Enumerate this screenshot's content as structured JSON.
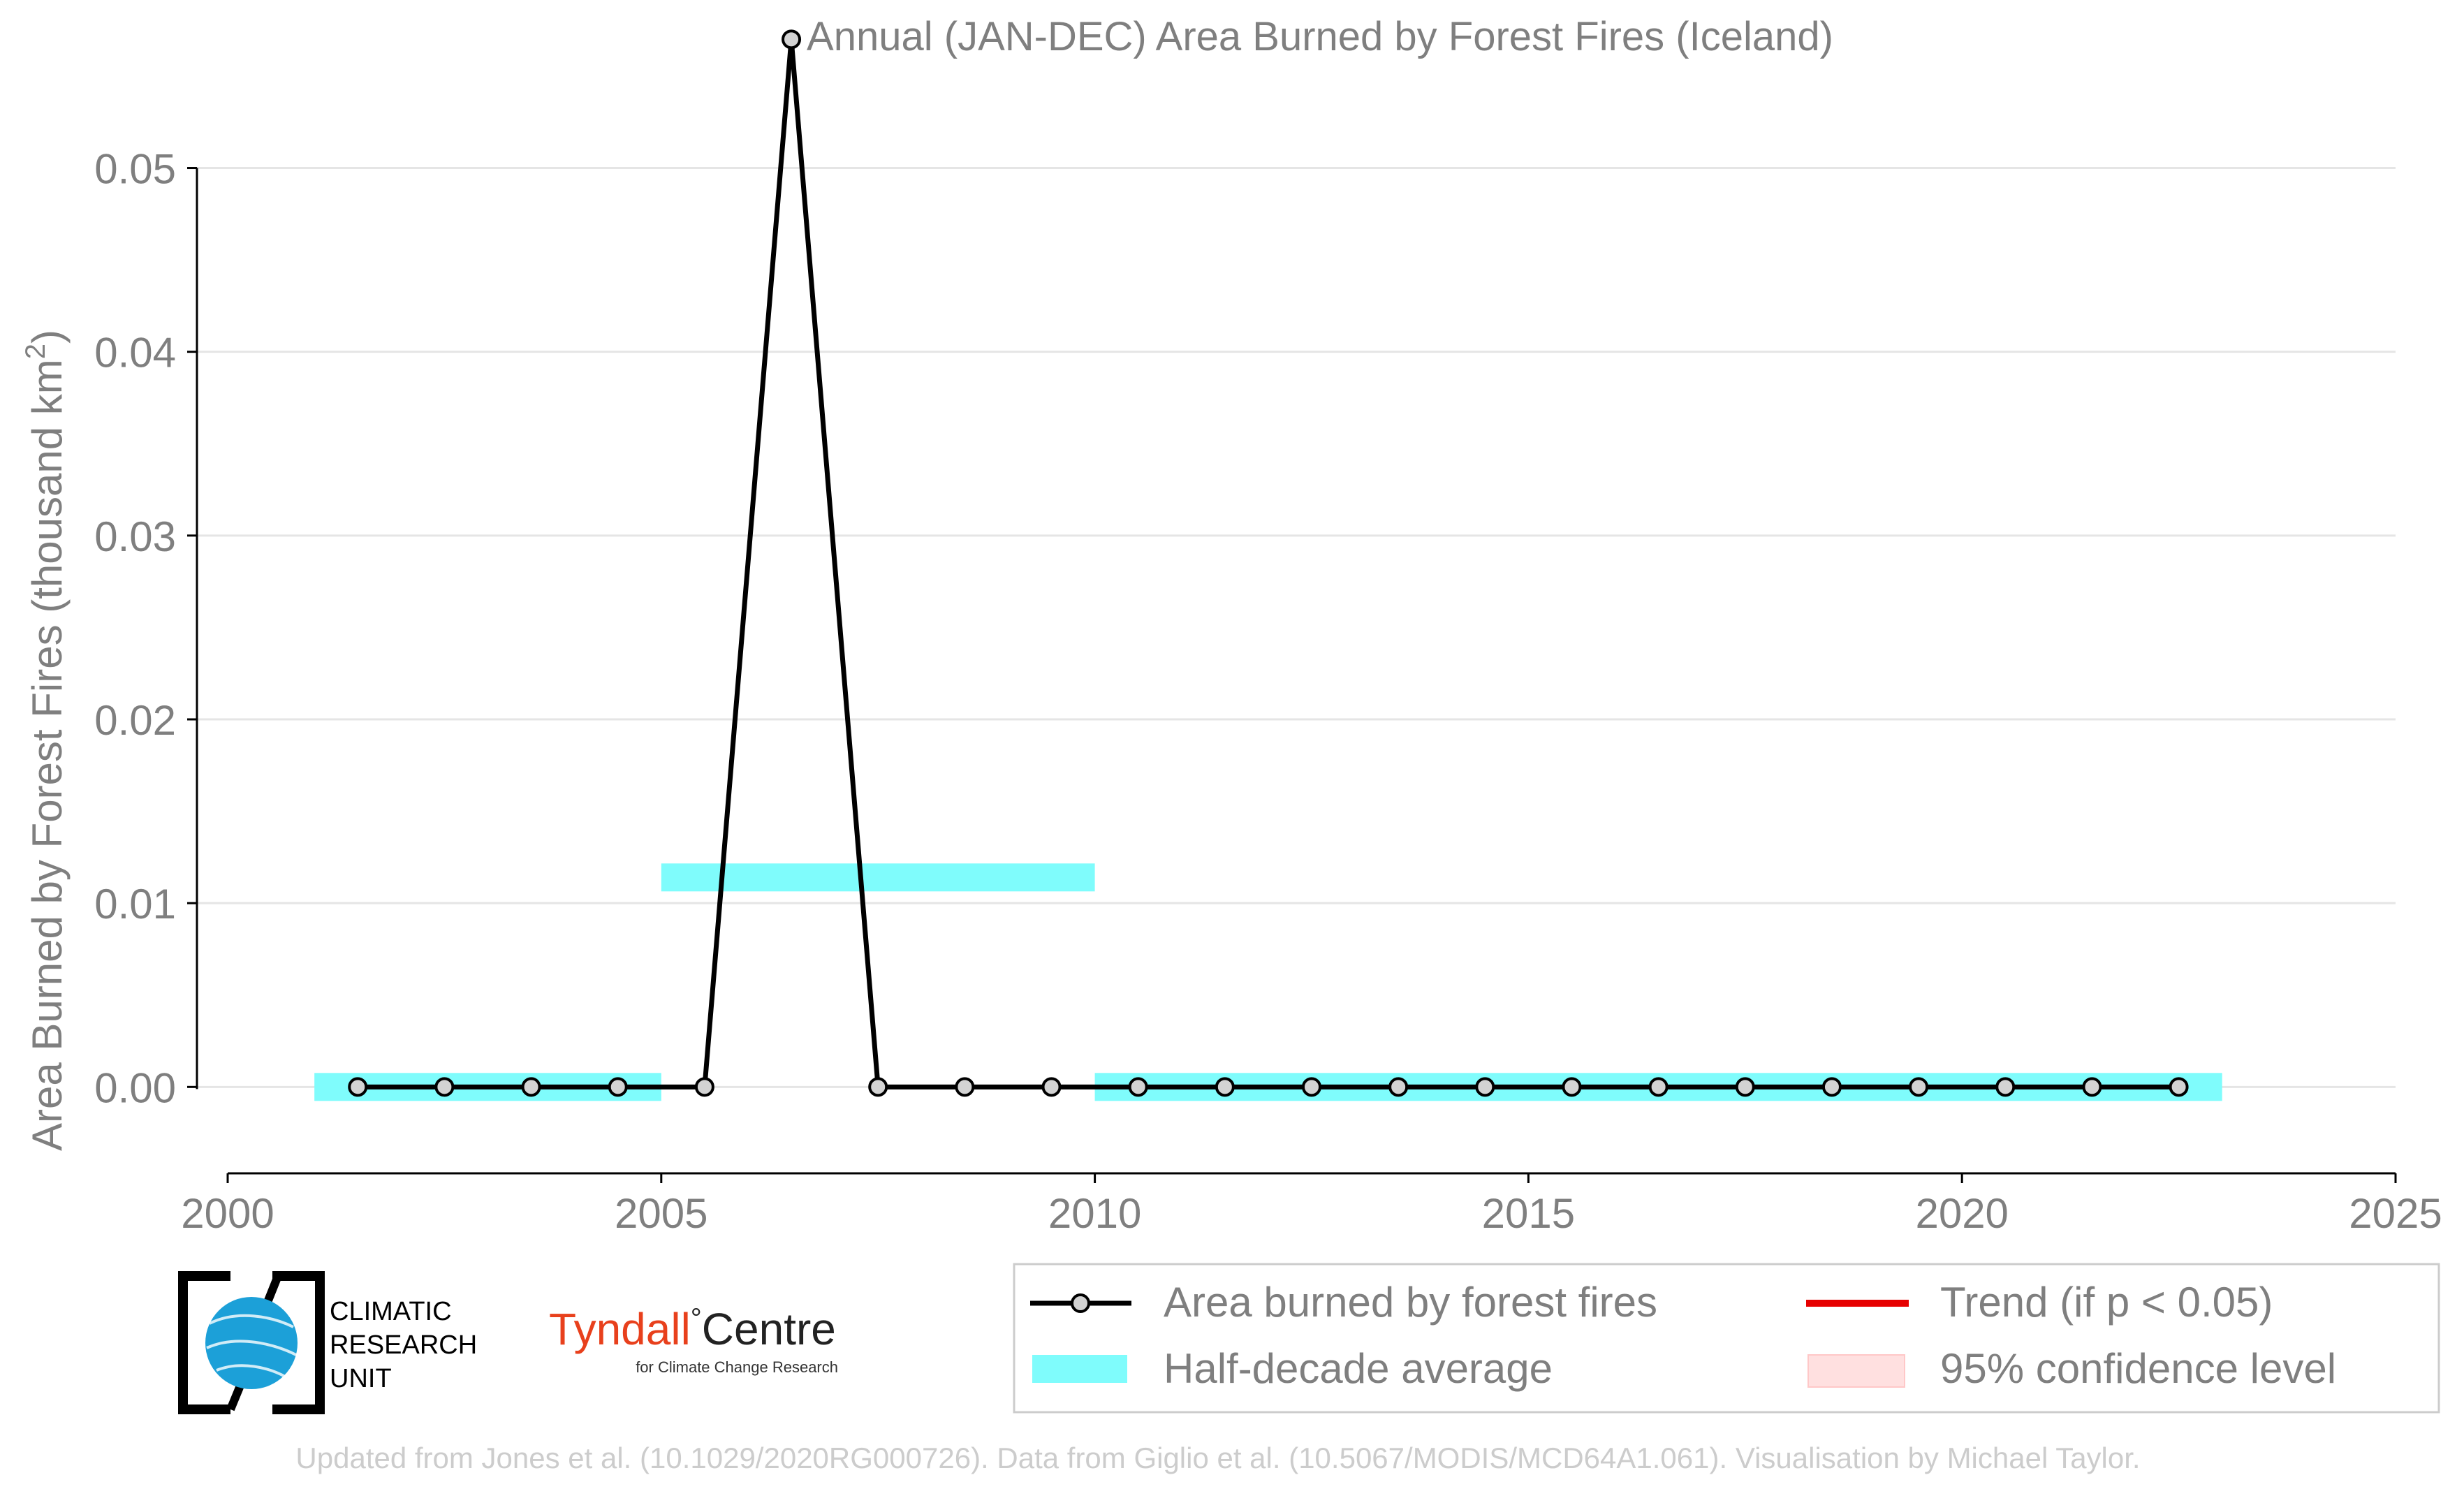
{
  "chart_data": {
    "type": "line",
    "title": "Annual (JAN-DEC) Area Burned by Forest Fires (Iceland)",
    "ylabel_main": "Area Burned by Forest Fires (thousand km",
    "ylabel_sup": "2",
    "ylabel_close": ")",
    "xlabel": "",
    "xlim": [
      2000,
      2025
    ],
    "ylim": [
      -0.0047,
      0.058
    ],
    "x_ticks": [
      2000,
      2005,
      2010,
      2015,
      2020,
      2025
    ],
    "y_ticks": [
      0.0,
      0.01,
      0.02,
      0.03,
      0.04,
      0.05
    ],
    "y_tick_labels": [
      "0.00",
      "0.01",
      "0.02",
      "0.03",
      "0.04",
      "0.05"
    ],
    "grid": true,
    "series": [
      {
        "name": "Area burned by forest fires",
        "color": "#000000",
        "marker_fill": "#d3d3d3",
        "x": [
          2001.5,
          2002.5,
          2003.5,
          2004.5,
          2005.5,
          2006.5,
          2007.5,
          2008.5,
          2009.5,
          2010.5,
          2011.5,
          2012.5,
          2013.5,
          2014.5,
          2015.5,
          2016.5,
          2017.5,
          2018.5,
          2019.5,
          2020.5,
          2021.5,
          2022.5
        ],
        "values": [
          0,
          0,
          0,
          0,
          0,
          0.057,
          0,
          0,
          0,
          0,
          0,
          0,
          0,
          0,
          0,
          0,
          0,
          0,
          0,
          0,
          0,
          0
        ]
      }
    ],
    "half_decade_average": {
      "name": "Half-decade average",
      "color": "#7ffcfc",
      "segments": [
        {
          "x_start": 2001,
          "x_end": 2005,
          "value": 0.0
        },
        {
          "x_start": 2005,
          "x_end": 2010,
          "value": 0.0114
        },
        {
          "x_start": 2010,
          "x_end": 2023,
          "value": 0.0
        }
      ]
    },
    "legend": {
      "position": "bottom-right",
      "entries": [
        {
          "label": "Area burned by forest fires",
          "kind": "line-marker",
          "color": "#000000"
        },
        {
          "label": "Trend (if p < 0.05)",
          "kind": "line",
          "color": "#e60000"
        },
        {
          "label": "Half-decade average",
          "kind": "patch",
          "color": "#7ffcfc"
        },
        {
          "label": "95% confidence level",
          "kind": "patch",
          "color": "#ffe0e0"
        }
      ]
    }
  },
  "logos": {
    "cru_line1": "CLIMATIC",
    "cru_line2": "RESEARCH",
    "cru_line3": "UNIT",
    "tyndall_name": "Tyndall",
    "tyndall_degree": "°",
    "tyndall_centre": "Centre",
    "tyndall_sub": "for Climate Change Research"
  },
  "footer": {
    "credit": "Updated from Jones et al. (10.1029/2020RG000726). Data from Giglio et al. (10.5067/MODIS/MCD64A1.061). Visualisation by Michael Taylor."
  },
  "colors": {
    "text_grey": "#7f7f7f",
    "footer_grey": "#cccccc",
    "grid": "#e5e5e5",
    "tyndall_red": "#e8401c"
  }
}
